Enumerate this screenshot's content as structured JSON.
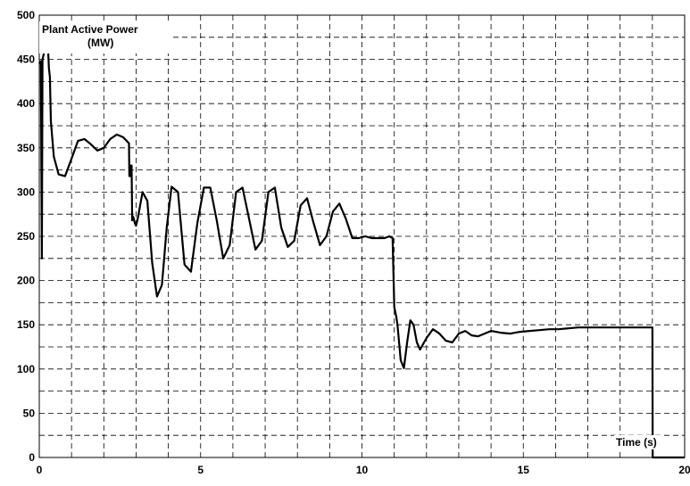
{
  "chart_data": {
    "type": "line",
    "title": "",
    "annotations": {
      "ylabel_line1": "Plant Active Power",
      "ylabel_line2": "(MW)",
      "xlabel": "Time (s)"
    },
    "xlim": [
      0,
      20
    ],
    "ylim": [
      0,
      500
    ],
    "x_ticks": [
      0,
      5,
      10,
      15,
      20
    ],
    "y_ticks": [
      0,
      50,
      100,
      150,
      200,
      250,
      300,
      350,
      400,
      450,
      500
    ],
    "grid": true,
    "grid_style": "dashed",
    "legend": "none",
    "colors": {
      "line": "#000000",
      "grid": "#000000",
      "background": "#ffffff"
    },
    "series": [
      {
        "x": [
          0,
          0.05,
          0.08,
          0.1,
          0.15,
          0.2,
          0.27,
          0.3,
          0.33,
          0.36,
          0.45,
          0.6,
          0.8,
          1.0,
          1.2,
          1.4,
          1.6,
          1.8,
          2.0,
          2.2,
          2.4,
          2.6,
          2.78,
          2.79,
          2.82,
          2.83,
          2.86,
          2.88,
          2.91,
          2.93,
          2.96,
          3.0,
          3.05,
          3.2,
          3.35,
          3.5,
          3.65,
          3.8,
          3.95,
          4.1,
          4.3,
          4.5,
          4.7,
          4.9,
          5.1,
          5.3,
          5.5,
          5.7,
          5.9,
          6.1,
          6.3,
          6.5,
          6.7,
          6.9,
          7.1,
          7.3,
          7.5,
          7.7,
          7.9,
          8.1,
          8.3,
          8.5,
          8.7,
          8.9,
          9.1,
          9.3,
          9.5,
          9.7,
          9.9,
          10.1,
          10.3,
          10.5,
          10.7,
          10.85,
          10.95,
          11.0,
          11.03,
          11.06,
          11.1,
          11.2,
          11.3,
          11.4,
          11.5,
          11.6,
          11.7,
          11.8,
          12.0,
          12.2,
          12.4,
          12.6,
          12.8,
          13.0,
          13.2,
          13.4,
          13.6,
          13.8,
          14.0,
          14.3,
          14.6,
          14.9,
          15.2,
          15.5,
          15.8,
          16.1,
          16.4,
          16.7,
          17.0,
          17.5,
          18.0,
          18.5,
          19.0,
          19.01,
          20.0
        ],
        "y": [
          445,
          448,
          225,
          450,
          458,
          465,
          463,
          440,
          430,
          380,
          340,
          320,
          318,
          338,
          358,
          360,
          354,
          347,
          350,
          360,
          365,
          362,
          355,
          318,
          330,
          318,
          330,
          268,
          272,
          270,
          265,
          262,
          270,
          300,
          290,
          220,
          182,
          195,
          260,
          306,
          300,
          218,
          210,
          265,
          305,
          305,
          268,
          225,
          240,
          300,
          305,
          270,
          235,
          245,
          300,
          305,
          260,
          238,
          245,
          285,
          293,
          265,
          240,
          250,
          278,
          287,
          270,
          248,
          248,
          250,
          248,
          248,
          248,
          250,
          248,
          170,
          165,
          160,
          150,
          110,
          101,
          130,
          155,
          150,
          130,
          122,
          135,
          145,
          140,
          132,
          130,
          140,
          143,
          138,
          137,
          140,
          143,
          141,
          140,
          142,
          143,
          144,
          145,
          145,
          146,
          147,
          147,
          147,
          147,
          147,
          147,
          0,
          0
        ]
      }
    ]
  }
}
